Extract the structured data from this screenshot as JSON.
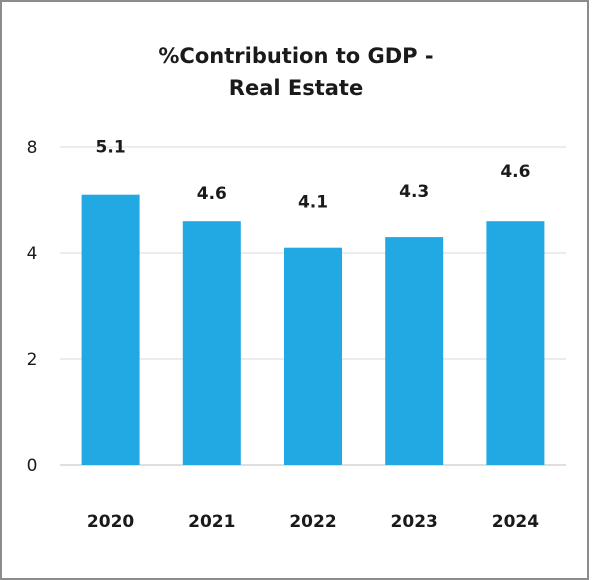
{
  "chart_data": {
    "type": "bar",
    "title_lines": [
      "%Contribution to GDP -",
      "Real Estate"
    ],
    "categories": [
      "2020",
      "2021",
      "2022",
      "2023",
      "2024"
    ],
    "values": [
      5.1,
      4.6,
      4.1,
      4.3,
      4.6
    ],
    "value_labels": [
      "5.1",
      "4.6",
      "4.1",
      "4.3",
      "4.6"
    ],
    "y_ticks": [
      "0",
      "2",
      "4",
      "8"
    ],
    "ylim": [
      0,
      8
    ],
    "grid": true,
    "legend": "none",
    "bar_color": "#22a8e2",
    "gridline_color": "#d9d9d9"
  }
}
